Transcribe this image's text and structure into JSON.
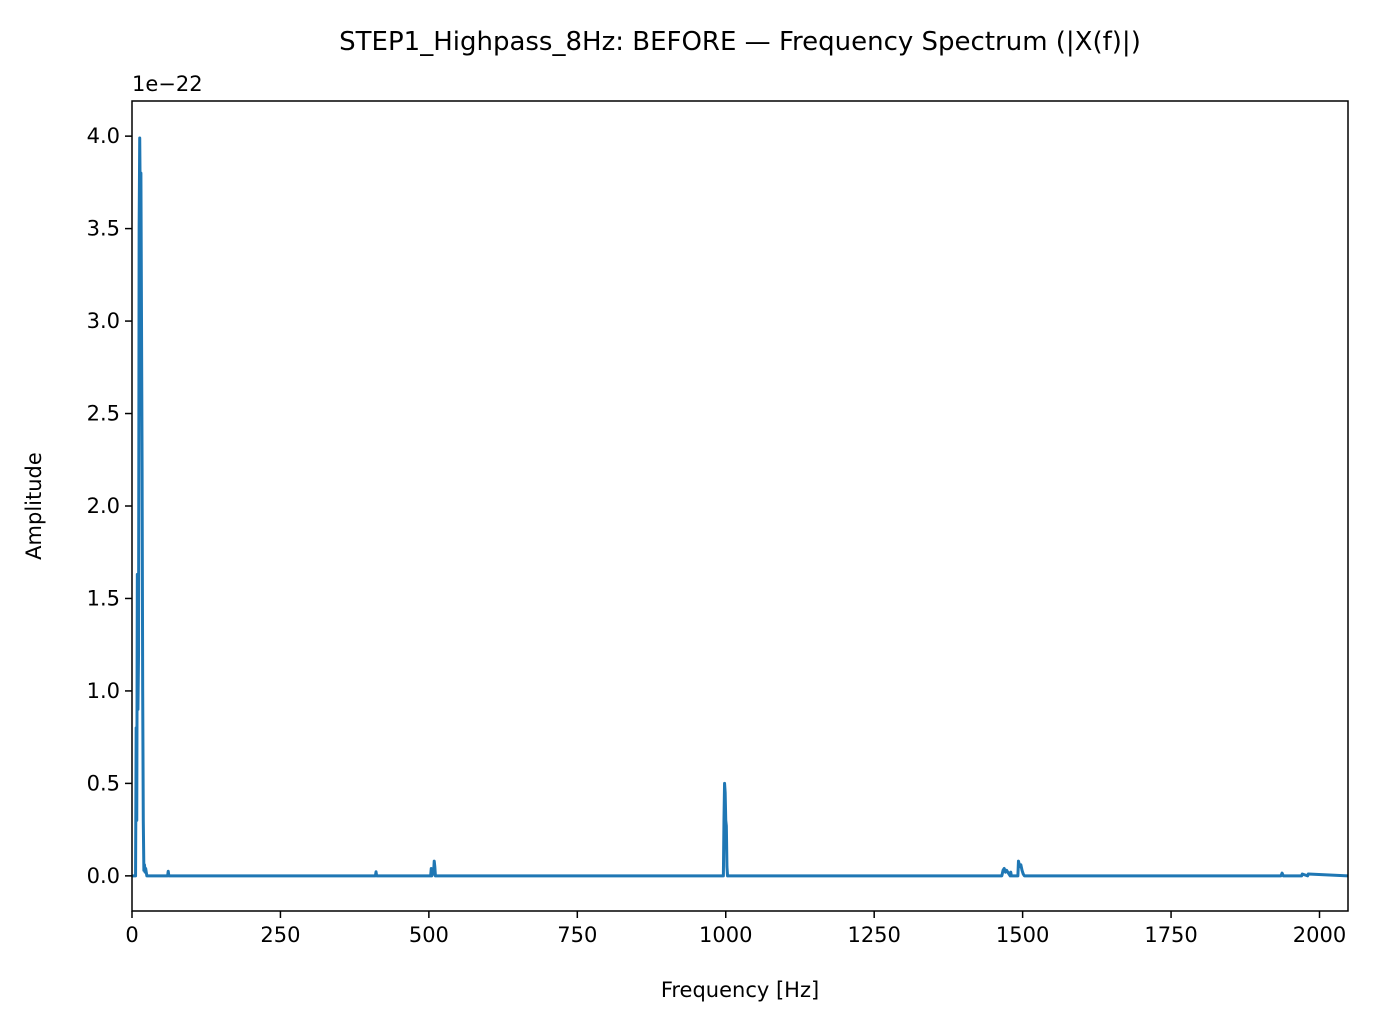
{
  "chart_data": {
    "type": "line",
    "title": "STEP1_Highpass_8Hz: BEFORE — Frequency Spectrum (|X(f)|)",
    "xlabel": "Frequency [Hz]",
    "ylabel": "Amplitude",
    "y_offset_label": "1e−22",
    "xlim": [
      0,
      2048
    ],
    "ylim": [
      -0.19,
      4.19
    ],
    "x_ticks": [
      0,
      250,
      500,
      750,
      1000,
      1250,
      1500,
      1750,
      2000
    ],
    "x_tick_labels": [
      "0",
      "250",
      "500",
      "750",
      "1000",
      "1250",
      "1500",
      "1750",
      "2000"
    ],
    "y_ticks": [
      0.0,
      0.5,
      1.0,
      1.5,
      2.0,
      2.5,
      3.0,
      3.5,
      4.0
    ],
    "y_tick_labels": [
      "0.0",
      "0.5",
      "1.0",
      "1.5",
      "2.0",
      "2.5",
      "3.0",
      "3.5",
      "4.0"
    ],
    "grid": false,
    "color": "#1f77b4",
    "series": [
      {
        "x": [
          0,
          6,
          7,
          8,
          9,
          10,
          11,
          12,
          13,
          14,
          15,
          16,
          17,
          18,
          19,
          20,
          21,
          22,
          23,
          25,
          60,
          61,
          62,
          410,
          411,
          412,
          503,
          504,
          505,
          508,
          509,
          510,
          511,
          513,
          996,
          997,
          998,
          999,
          1000,
          1001,
          1002,
          1003,
          1465,
          1467,
          1469,
          1471,
          1473,
          1479,
          1480,
          1481,
          1492,
          1493,
          1495,
          1497,
          1499,
          1501,
          1503,
          1935,
          1937,
          1939,
          1970,
          1971,
          1980,
          1981,
          2048
        ],
        "y": [
          0,
          0,
          0.8,
          0.3,
          1.63,
          0.9,
          1.2,
          3.5,
          3.99,
          3.6,
          3.8,
          3.0,
          2.2,
          1.0,
          0.3,
          0.03,
          0.06,
          0.02,
          0.04,
          0,
          0,
          0.025,
          0,
          0,
          0.022,
          0,
          0,
          0.04,
          0,
          0.02,
          0.08,
          0.05,
          0,
          0,
          0,
          0.3,
          0.5,
          0.45,
          0.3,
          0.27,
          0.05,
          0,
          0,
          0.03,
          0.04,
          0.02,
          0.03,
          0,
          0.02,
          0,
          0,
          0.08,
          0.05,
          0.06,
          0.03,
          0.01,
          0,
          0,
          0.015,
          0,
          0,
          0.01,
          0,
          0.01,
          0
        ]
      }
    ]
  }
}
